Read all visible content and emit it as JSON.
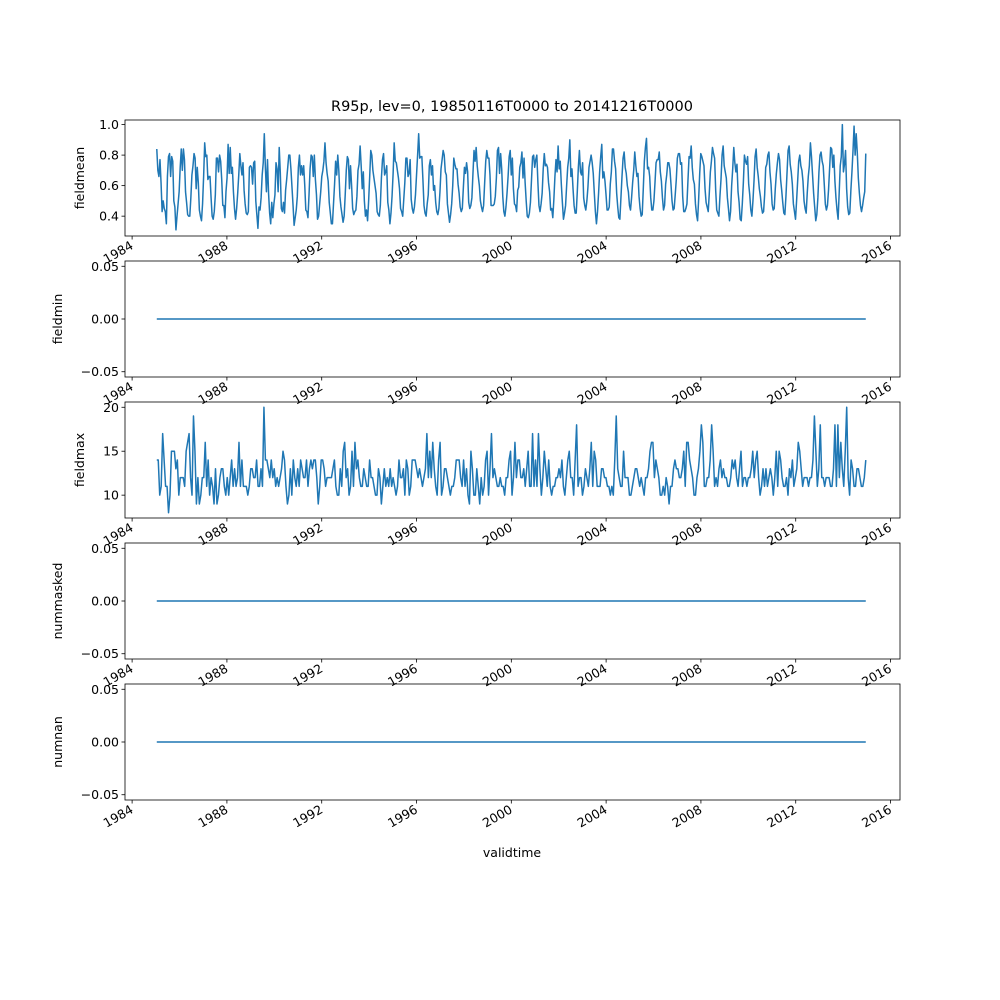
{
  "figure": {
    "title": "R95p, lev=0, 19850116T0000 to 20141216T0000"
  },
  "line_color": "#1f77b4",
  "chart_data": [
    {
      "type": "line",
      "name": "fieldmean",
      "ylabel": "fieldmean",
      "xlabel": "",
      "x_ticks": [
        "1984",
        "1988",
        "1992",
        "1996",
        "2000",
        "2004",
        "2008",
        "2012",
        "2016"
      ],
      "y_ticks": [
        "0.4",
        "0.6",
        "0.8",
        "1.0"
      ],
      "x_start": "1985-01-16",
      "x_end": "2014-12-16",
      "ylim": [
        0.27,
        1.03
      ],
      "grid": false,
      "values": [
        0.84,
        0.7,
        0.66,
        0.77,
        0.62,
        0.43,
        0.5,
        0.45,
        0.43,
        0.35,
        0.66,
        0.79,
        0.81,
        0.66,
        0.79,
        0.76,
        0.5,
        0.46,
        0.31,
        0.4,
        0.48,
        0.56,
        0.72,
        0.84,
        0.7,
        0.84,
        0.77,
        0.56,
        0.49,
        0.41,
        0.4,
        0.4,
        0.52,
        0.67,
        0.73,
        0.81,
        0.78,
        0.58,
        0.72,
        0.62,
        0.44,
        0.4,
        0.37,
        0.48,
        0.66,
        0.88,
        0.79,
        0.8,
        0.64,
        0.66,
        0.66,
        0.52,
        0.4,
        0.38,
        0.43,
        0.54,
        0.78,
        0.78,
        0.69,
        0.8,
        0.76,
        0.64,
        0.47,
        0.47,
        0.39,
        0.56,
        0.65,
        0.87,
        0.68,
        0.85,
        0.68,
        0.72,
        0.56,
        0.45,
        0.38,
        0.45,
        0.55,
        0.67,
        0.81,
        0.73,
        0.67,
        0.75,
        0.57,
        0.48,
        0.42,
        0.41,
        0.43,
        0.72,
        0.73,
        0.72,
        0.61,
        0.75,
        0.76,
        0.5,
        0.41,
        0.32,
        0.46,
        0.44,
        0.52,
        0.67,
        0.75,
        0.94,
        0.72,
        0.56,
        0.77,
        0.55,
        0.42,
        0.35,
        0.49,
        0.39,
        0.48,
        0.54,
        0.75,
        0.71,
        0.56,
        0.85,
        0.69,
        0.45,
        0.43,
        0.49,
        0.42,
        0.57,
        0.64,
        0.72,
        0.8,
        0.8,
        0.71,
        0.59,
        0.47,
        0.34,
        0.39,
        0.44,
        0.53,
        0.72,
        0.8,
        0.67,
        0.73,
        0.67,
        0.73,
        0.6,
        0.44,
        0.43,
        0.39,
        0.54,
        0.71,
        0.8,
        0.79,
        0.66,
        0.8,
        0.64,
        0.54,
        0.38,
        0.4,
        0.48,
        0.56,
        0.66,
        0.7,
        0.76,
        0.88,
        0.75,
        0.68,
        0.63,
        0.49,
        0.42,
        0.35,
        0.35,
        0.48,
        0.61,
        0.76,
        0.67,
        0.8,
        0.7,
        0.53,
        0.46,
        0.41,
        0.36,
        0.4,
        0.54,
        0.7,
        0.79,
        0.77,
        0.58,
        0.73,
        0.6,
        0.45,
        0.41,
        0.43,
        0.44,
        0.53,
        0.7,
        0.74,
        0.86,
        0.73,
        0.58,
        0.69,
        0.5,
        0.4,
        0.44,
        0.37,
        0.5,
        0.66,
        0.83,
        0.8,
        0.7,
        0.65,
        0.6,
        0.55,
        0.43,
        0.41,
        0.4,
        0.47,
        0.65,
        0.77,
        0.81,
        0.67,
        0.69,
        0.73,
        0.49,
        0.44,
        0.35,
        0.42,
        0.53,
        0.68,
        0.88,
        0.76,
        0.75,
        0.7,
        0.65,
        0.58,
        0.45,
        0.43,
        0.4,
        0.51,
        0.62,
        0.78,
        0.78,
        0.66,
        0.68,
        0.77,
        0.51,
        0.45,
        0.42,
        0.46,
        0.54,
        0.67,
        0.8,
        0.94,
        0.78,
        0.79,
        0.79,
        0.64,
        0.47,
        0.42,
        0.4,
        0.48,
        0.54,
        0.73,
        0.77,
        0.67,
        0.73,
        0.57,
        0.6,
        0.49,
        0.43,
        0.41,
        0.45,
        0.56,
        0.71,
        0.77,
        0.83,
        0.8,
        0.69,
        0.67,
        0.48,
        0.42,
        0.36,
        0.41,
        0.48,
        0.6,
        0.78,
        0.74,
        0.71,
        0.71,
        0.61,
        0.55,
        0.46,
        0.43,
        0.45,
        0.59,
        0.72,
        0.68,
        0.75,
        0.69,
        0.49,
        0.45,
        0.47,
        0.52,
        0.68,
        0.83,
        0.76,
        0.85,
        0.73,
        0.66,
        0.6,
        0.5,
        0.46,
        0.43,
        0.47,
        0.62,
        0.76,
        0.83,
        0.78,
        0.78,
        0.67,
        0.47,
        0.47,
        0.47,
        0.48,
        0.53,
        0.65,
        0.83,
        0.85,
        0.68,
        0.81,
        0.71,
        0.53,
        0.43,
        0.4,
        0.46,
        0.55,
        0.66,
        0.79,
        0.83,
        0.67,
        0.78,
        0.58,
        0.48,
        0.47,
        0.43,
        0.57,
        0.59,
        0.72,
        0.75,
        0.82,
        0.65,
        0.78,
        0.62,
        0.5,
        0.4,
        0.39,
        0.42,
        0.49,
        0.64,
        0.79,
        0.8,
        0.72,
        0.77,
        0.8,
        0.62,
        0.47,
        0.43,
        0.48,
        0.55,
        0.71,
        0.81,
        0.73,
        0.74,
        0.72,
        0.62,
        0.56,
        0.44,
        0.45,
        0.39,
        0.51,
        0.66,
        0.77,
        0.69,
        0.86,
        0.71,
        0.76,
        0.61,
        0.49,
        0.38,
        0.42,
        0.47,
        0.6,
        0.72,
        0.78,
        0.9,
        0.66,
        0.71,
        0.58,
        0.47,
        0.42,
        0.42,
        0.56,
        0.72,
        0.83,
        0.69,
        0.67,
        0.75,
        0.52,
        0.47,
        0.44,
        0.5,
        0.59,
        0.72,
        0.76,
        0.8,
        0.75,
        0.68,
        0.55,
        0.43,
        0.35,
        0.43,
        0.55,
        0.69,
        0.79,
        0.87,
        0.65,
        0.69,
        0.63,
        0.54,
        0.44,
        0.44,
        0.46,
        0.61,
        0.69,
        0.84,
        0.84,
        0.76,
        0.71,
        0.55,
        0.46,
        0.39,
        0.38,
        0.52,
        0.66,
        0.78,
        0.82,
        0.72,
        0.68,
        0.6,
        0.56,
        0.47,
        0.44,
        0.52,
        0.62,
        0.7,
        0.82,
        0.73,
        0.66,
        0.68,
        0.53,
        0.45,
        0.4,
        0.41,
        0.58,
        0.76,
        0.85,
        0.91,
        0.71,
        0.72,
        0.66,
        0.52,
        0.44,
        0.44,
        0.5,
        0.62,
        0.75,
        0.77,
        0.77,
        0.82,
        0.69,
        0.63,
        0.52,
        0.44,
        0.47,
        0.61,
        0.67,
        0.75,
        0.75,
        0.71,
        0.61,
        0.5,
        0.44,
        0.45,
        0.54,
        0.64,
        0.78,
        0.81,
        0.81,
        0.74,
        0.75,
        0.53,
        0.43,
        0.43,
        0.45,
        0.48,
        0.64,
        0.79,
        0.78,
        0.86,
        0.72,
        0.64,
        0.61,
        0.48,
        0.41,
        0.37,
        0.51,
        0.68,
        0.81,
        0.79,
        0.76,
        0.73,
        0.58,
        0.49,
        0.46,
        0.43,
        0.55,
        0.69,
        0.76,
        0.85,
        0.81,
        0.78,
        0.57,
        0.44,
        0.42,
        0.4,
        0.53,
        0.64,
        0.8,
        0.86,
        0.73,
        0.69,
        0.65,
        0.52,
        0.45,
        0.37,
        0.43,
        0.6,
        0.71,
        0.85,
        0.75,
        0.69,
        0.74,
        0.56,
        0.49,
        0.38,
        0.37,
        0.48,
        0.62,
        0.8,
        0.76,
        0.74,
        0.79,
        0.61,
        0.54,
        0.44,
        0.4,
        0.5,
        0.63,
        0.79,
        0.84,
        0.72,
        0.66,
        0.58,
        0.53,
        0.46,
        0.42,
        0.43,
        0.54,
        0.72,
        0.74,
        0.8,
        0.82,
        0.69,
        0.61,
        0.48,
        0.44,
        0.45,
        0.58,
        0.68,
        0.75,
        0.81,
        0.77,
        0.64,
        0.57,
        0.49,
        0.42,
        0.41,
        0.53,
        0.68,
        0.83,
        0.86,
        0.74,
        0.69,
        0.61,
        0.48,
        0.43,
        0.38,
        0.5,
        0.63,
        0.76,
        0.8,
        0.73,
        0.7,
        0.63,
        0.5,
        0.45,
        0.42,
        0.55,
        0.66,
        0.73,
        0.88,
        0.79,
        0.67,
        0.55,
        0.46,
        0.37,
        0.41,
        0.52,
        0.69,
        0.8,
        0.82,
        0.76,
        0.73,
        0.61,
        0.48,
        0.44,
        0.47,
        0.57,
        0.71,
        0.85,
        0.84,
        0.72,
        0.8,
        0.63,
        0.52,
        0.44,
        0.38,
        0.55,
        0.73,
        0.79,
        1.0,
        0.69,
        0.74,
        0.83,
        0.58,
        0.46,
        0.41,
        0.42,
        0.57,
        0.69,
        0.83,
        0.99,
        0.8,
        0.94,
        0.82,
        0.65,
        0.55,
        0.47,
        0.43,
        0.47,
        0.52,
        0.56,
        0.81
      ]
    },
    {
      "type": "line",
      "name": "fieldmin",
      "ylabel": "fieldmin",
      "xlabel": "",
      "x_ticks": [
        "1984",
        "1988",
        "1992",
        "1996",
        "2000",
        "2004",
        "2008",
        "2012",
        "2016"
      ],
      "y_ticks": [
        "−0.05",
        "0.00",
        "0.05"
      ],
      "x_start": "1985-01-16",
      "x_end": "2014-12-16",
      "ylim": [
        -0.055,
        0.055
      ],
      "grid": false,
      "constant_value": 0.0
    },
    {
      "type": "line",
      "name": "fieldmax",
      "ylabel": "fieldmax",
      "xlabel": "",
      "x_ticks": [
        "1984",
        "1988",
        "1992",
        "1996",
        "2000",
        "2004",
        "2008",
        "2012",
        "2016"
      ],
      "y_ticks": [
        "10",
        "15",
        "20"
      ],
      "x_start": "1985-01-16",
      "x_end": "2014-12-16",
      "ylim": [
        7.4,
        20.6
      ],
      "grid": false,
      "values": [
        14,
        14,
        10,
        11,
        17,
        14,
        11,
        11,
        8,
        10,
        15,
        15,
        15,
        13,
        14,
        10,
        12,
        12,
        12,
        11,
        15,
        16,
        17,
        12,
        10,
        19,
        15,
        9,
        12,
        9,
        10,
        12,
        12,
        16,
        11,
        14,
        10,
        12,
        11,
        9,
        13,
        9,
        10,
        12,
        13,
        13,
        11,
        10,
        12,
        10,
        12,
        14,
        11,
        13,
        11,
        12,
        16,
        11,
        14,
        11,
        11,
        11,
        10,
        11,
        13,
        13,
        12,
        12,
        14,
        11,
        11,
        13,
        11,
        20,
        14,
        14,
        13,
        12,
        14,
        12,
        13,
        11,
        12,
        11,
        12,
        13,
        15,
        14,
        11,
        9,
        10,
        13,
        10,
        14,
        12,
        11,
        13,
        11,
        14,
        13,
        12,
        12,
        14,
        11,
        13,
        14,
        13,
        14,
        14,
        12,
        9,
        11,
        14,
        14,
        13,
        11,
        12,
        12,
        12,
        12,
        13,
        14,
        11,
        10,
        10,
        13,
        11,
        15,
        16,
        12,
        13,
        10,
        11,
        15,
        11,
        16,
        13,
        14,
        12,
        11,
        11,
        13,
        12,
        11,
        11,
        14,
        12,
        12,
        11,
        10,
        10,
        13,
        12,
        9,
        11,
        13,
        11,
        12,
        11,
        13,
        11,
        12,
        11,
        10,
        11,
        14,
        12,
        12,
        13,
        10,
        14,
        13,
        10,
        11,
        14,
        14,
        14,
        13,
        12,
        13,
        12,
        11,
        12,
        13,
        17,
        12,
        15,
        12,
        16,
        13,
        11,
        10,
        14,
        16,
        10,
        11,
        13,
        13,
        12,
        11,
        10,
        11,
        11,
        12,
        14,
        14,
        14,
        12,
        11,
        14,
        11,
        13,
        10,
        9,
        15,
        13,
        10,
        10,
        13,
        11,
        9,
        12,
        10,
        11,
        14,
        15,
        10,
        13,
        17,
        12,
        13,
        12,
        11,
        11,
        12,
        11,
        11,
        10,
        12,
        12,
        14,
        15,
        10,
        12,
        16,
        12,
        14,
        14,
        12,
        12,
        13,
        11,
        13,
        15,
        11,
        11,
        17,
        11,
        14,
        11,
        17,
        13,
        10,
        12,
        15,
        13,
        11,
        14,
        11,
        10,
        11,
        11,
        12,
        12,
        13,
        12,
        14,
        11,
        10,
        12,
        14,
        15,
        12,
        12,
        10,
        14,
        18,
        11,
        12,
        12,
        10,
        11,
        13,
        12,
        11,
        13,
        16,
        11,
        15,
        14,
        11,
        11,
        11,
        13,
        13,
        12,
        12,
        11,
        11,
        10,
        11,
        10,
        14,
        19,
        13,
        12,
        11,
        11,
        15,
        12,
        12,
        12,
        10,
        10,
        11,
        12,
        13,
        13,
        12,
        11,
        12,
        11,
        10,
        12,
        12,
        13,
        15,
        16,
        16,
        12,
        14,
        13,
        12,
        10,
        10,
        11,
        10,
        12,
        11,
        9,
        11,
        11,
        13,
        14,
        13,
        13,
        12,
        12,
        13,
        15,
        11,
        16,
        16,
        14,
        13,
        12,
        10,
        10,
        12,
        13,
        15,
        18,
        16,
        11,
        11,
        12,
        12,
        14,
        18,
        15,
        11,
        12,
        11,
        13,
        14,
        12,
        13,
        12,
        12,
        11,
        11,
        12,
        14,
        13,
        14,
        12,
        11,
        13,
        15,
        11,
        12,
        12,
        11,
        12,
        12,
        13,
        15,
        12,
        14,
        15,
        12,
        10,
        11,
        13,
        11,
        13,
        11,
        12,
        13,
        12,
        10,
        12,
        15,
        11,
        15,
        14,
        12,
        11,
        11,
        12,
        10,
        13,
        12,
        14,
        11,
        12,
        13,
        16,
        15,
        13,
        11,
        12,
        12,
        12,
        11,
        12,
        12,
        14,
        19,
        15,
        11,
        13,
        18,
        12,
        12,
        11,
        12,
        12,
        12,
        11,
        11,
        13,
        18,
        11,
        18,
        12,
        16,
        13,
        11,
        15,
        20,
        12,
        10,
        14,
        13,
        11,
        11,
        13,
        13,
        12,
        11,
        11,
        12,
        14
      ]
    },
    {
      "type": "line",
      "name": "nummasked",
      "ylabel": "nummasked",
      "xlabel": "",
      "x_ticks": [
        "1984",
        "1988",
        "1992",
        "1996",
        "2000",
        "2004",
        "2008",
        "2012",
        "2016"
      ],
      "y_ticks": [
        "−0.05",
        "0.00",
        "0.05"
      ],
      "x_start": "1985-01-16",
      "x_end": "2014-12-16",
      "ylim": [
        -0.055,
        0.055
      ],
      "grid": false,
      "constant_value": 0.0
    },
    {
      "type": "line",
      "name": "numnan",
      "ylabel": "numnan",
      "xlabel": "validtime",
      "x_ticks": [
        "1984",
        "1988",
        "1992",
        "1996",
        "2000",
        "2004",
        "2008",
        "2012",
        "2016"
      ],
      "y_ticks": [
        "−0.05",
        "0.00",
        "0.05"
      ],
      "x_start": "1985-01-16",
      "x_end": "2014-12-16",
      "ylim": [
        -0.055,
        0.055
      ],
      "grid": false,
      "constant_value": 0.0
    }
  ]
}
